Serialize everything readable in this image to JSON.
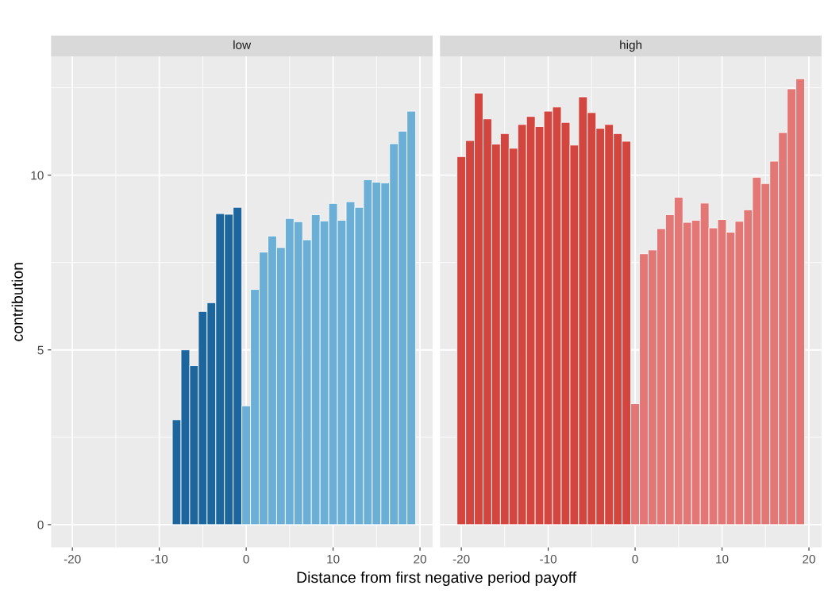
{
  "chart_data": [
    {
      "type": "bar",
      "title": "low",
      "xlabel": "Distance from first negative period payoff",
      "ylabel": "contribution",
      "xlim": [
        -22.45,
        21.45
      ],
      "xticks": [
        -20,
        -10,
        0,
        10,
        20
      ],
      "ylim": [
        -0.65,
        13.4
      ],
      "yticks": [
        0,
        5,
        10
      ],
      "grid": true,
      "series": [
        {
          "color": "#1d669d",
          "x": [
            -8,
            -7,
            -6,
            -5,
            -4,
            -3,
            -2,
            -1
          ],
          "values": [
            3.0,
            5.0,
            4.55,
            6.1,
            6.35,
            8.9,
            8.88,
            9.08
          ]
        },
        {
          "color": "#6baed6",
          "x": [
            0,
            1,
            2,
            3,
            4,
            5,
            6,
            7,
            8,
            9,
            10,
            11,
            12,
            13,
            14,
            15,
            16,
            17,
            18,
            19
          ],
          "values": [
            3.4,
            6.73,
            7.8,
            8.26,
            7.93,
            8.76,
            8.67,
            8.15,
            8.87,
            8.69,
            9.19,
            8.71,
            9.24,
            9.08,
            9.87,
            9.8,
            9.78,
            10.9,
            11.26,
            11.83
          ]
        }
      ]
    },
    {
      "type": "bar",
      "title": "high",
      "xlim": [
        -22.45,
        21.45
      ],
      "xticks": [
        -20,
        -10,
        0,
        10,
        20
      ],
      "ylim": [
        -0.65,
        13.4
      ],
      "yticks": [
        0,
        5,
        10
      ],
      "grid": true,
      "tick_labels": "x",
      "series": [
        {
          "color": "#d2463f",
          "x": [
            -20,
            -19,
            -18,
            -17,
            -16,
            -15,
            -14,
            -13,
            -12,
            -11,
            -10,
            -9,
            -8,
            -7,
            -6,
            -5,
            -4,
            -3,
            -2,
            -1
          ],
          "values": [
            10.53,
            10.99,
            12.35,
            11.61,
            10.89,
            11.19,
            10.77,
            11.45,
            11.68,
            11.39,
            11.83,
            11.95,
            11.51,
            10.86,
            12.24,
            11.79,
            11.34,
            11.45,
            11.19,
            10.97
          ]
        },
        {
          "color": "#e27776",
          "x": [
            0,
            1,
            2,
            3,
            4,
            5,
            6,
            7,
            8,
            9,
            10,
            11,
            12,
            13,
            14,
            15,
            16,
            17,
            18,
            19
          ],
          "values": [
            3.46,
            7.75,
            7.86,
            8.47,
            8.87,
            9.37,
            8.65,
            8.71,
            9.2,
            8.49,
            8.73,
            8.37,
            8.68,
            9.01,
            9.94,
            9.76,
            10.4,
            11.22,
            12.47,
            12.76
          ]
        }
      ]
    }
  ]
}
